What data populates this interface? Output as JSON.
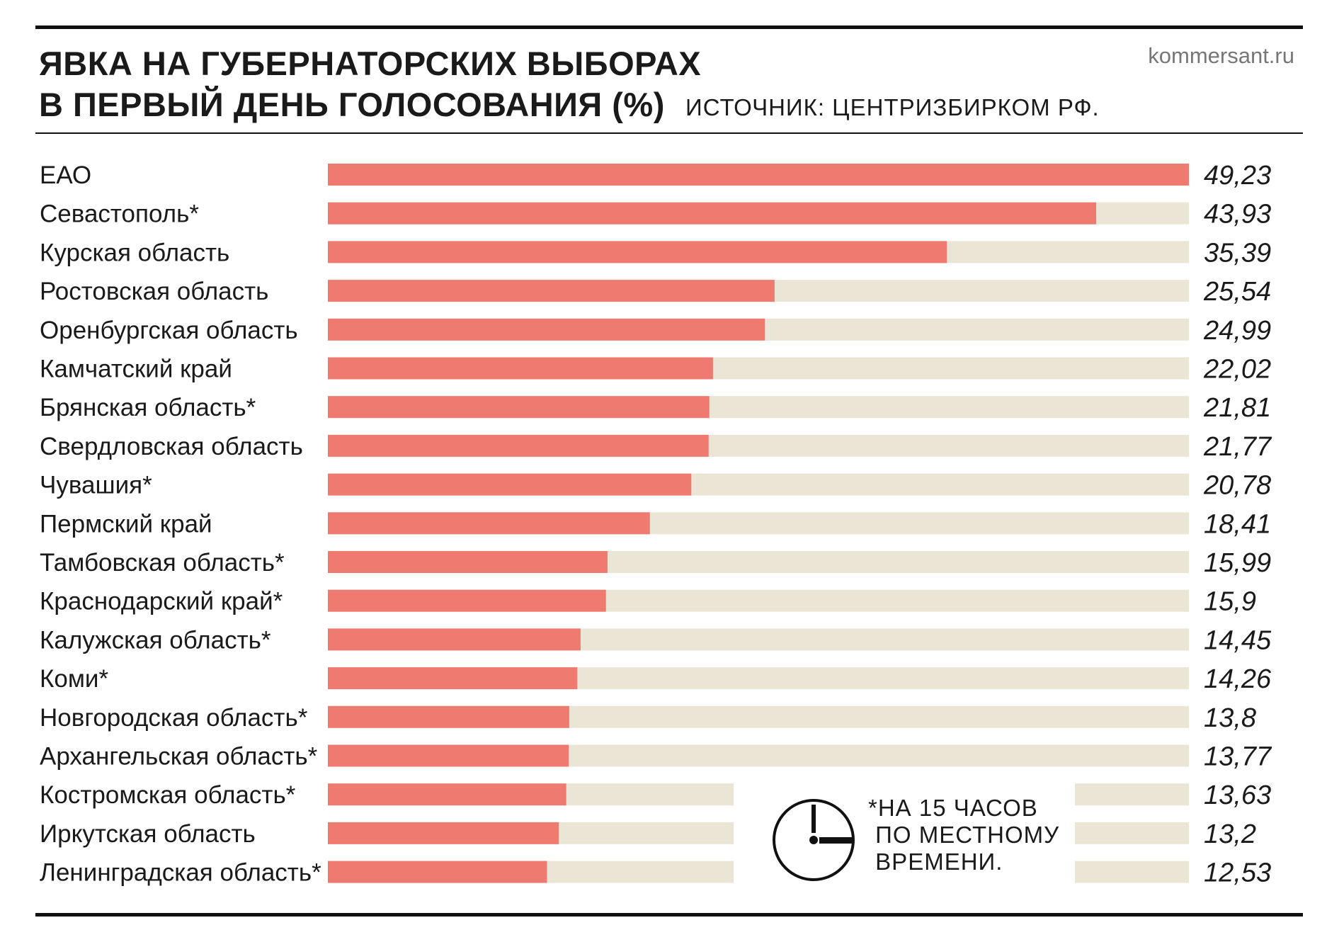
{
  "header": {
    "title_line1": "ЯВКА НА ГУБЕРНАТОРСКИХ ВЫБОРАХ",
    "title_line2": "В ПЕРВЫЙ ДЕНЬ ГОЛОСОВАНИЯ (%)",
    "source": "ИСТОЧНИК: ЦЕНТРИЗБИРКОМ РФ.",
    "site": "kommersant.ru"
  },
  "note": {
    "text": "*НА 15 ЧАСОВ\n ПО МЕСТНОМУ\n ВРЕМЕНИ.",
    "icon": "clock-icon"
  },
  "colors": {
    "bar": "#ef7a70",
    "track": "#ebe5d6",
    "text": "#1a1a1a"
  },
  "chart_data": {
    "type": "bar",
    "orientation": "horizontal",
    "categories": [
      "ЕАО",
      "Севастополь*",
      "Курская область",
      "Ростовская область",
      "Оренбургская область",
      "Камчатский край",
      "Брянская область*",
      "Свердловская область",
      "Чувашия*",
      "Пермский край",
      "Тамбовская область*",
      "Краснодарский край*",
      "Калужская область*",
      "Коми*",
      "Новгородская область*",
      "Архангельская область*",
      "Костромская область*",
      "Иркутская область",
      "Ленинградская область*"
    ],
    "values": [
      49.23,
      43.93,
      35.39,
      25.54,
      24.99,
      22.02,
      21.81,
      21.77,
      20.78,
      18.41,
      15.99,
      15.9,
      14.45,
      14.26,
      13.8,
      13.77,
      13.63,
      13.2,
      12.53
    ],
    "value_labels": [
      "49,23",
      "43,93",
      "35,39",
      "25,54",
      "24,99",
      "22,02",
      "21,81",
      "21,77",
      "20,78",
      "18,41",
      "15,99",
      "15,9",
      "14,45",
      "14,26",
      "13,8",
      "13,77",
      "13,63",
      "13,2",
      "12,53"
    ],
    "xlim": [
      0,
      49.23
    ],
    "grid": false,
    "legend": "none"
  }
}
